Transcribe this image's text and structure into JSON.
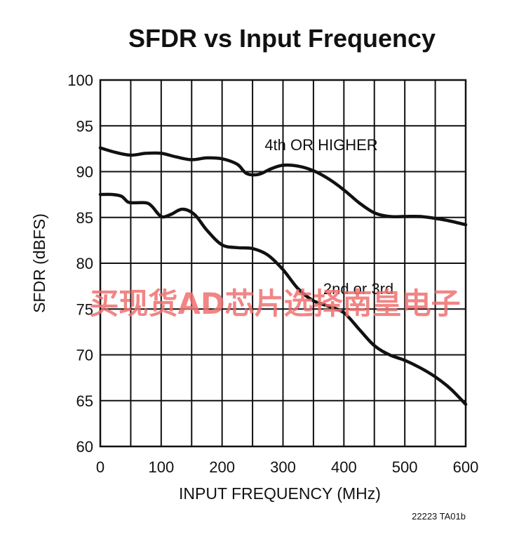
{
  "chart_data": {
    "type": "line",
    "title": "SFDR vs Input Frequency",
    "xlabel": "INPUT FREQUENCY (MHz)",
    "ylabel": "SFDR (dBFS)",
    "xlim": [
      0,
      600
    ],
    "ylim": [
      60,
      100
    ],
    "x_ticks": [
      "0",
      "100",
      "200",
      "300",
      "400",
      "500",
      "600"
    ],
    "y_ticks": [
      "60",
      "65",
      "70",
      "75",
      "80",
      "85",
      "90",
      "95",
      "100"
    ],
    "grid": true,
    "series": [
      {
        "name": "4th OR HIGHER",
        "x": [
          0,
          25,
          50,
          75,
          100,
          125,
          150,
          175,
          200,
          225,
          240,
          260,
          280,
          300,
          325,
          350,
          375,
          400,
          425,
          450,
          475,
          500,
          525,
          550,
          575,
          600
        ],
        "y": [
          92.6,
          92.1,
          91.8,
          92.0,
          92.0,
          91.6,
          91.3,
          91.5,
          91.4,
          90.8,
          89.8,
          89.7,
          90.3,
          90.7,
          90.6,
          90.1,
          89.2,
          88.0,
          86.6,
          85.5,
          85.1,
          85.1,
          85.1,
          84.9,
          84.6,
          84.2
        ]
      },
      {
        "name": "2nd or 3rd",
        "x": [
          0,
          20,
          35,
          45,
          55,
          75,
          85,
          100,
          115,
          135,
          155,
          175,
          200,
          225,
          250,
          275,
          300,
          325,
          350,
          375,
          400,
          425,
          450,
          475,
          500,
          525,
          550,
          575,
          600
        ],
        "y": [
          87.5,
          87.5,
          87.3,
          86.7,
          86.6,
          86.6,
          86.2,
          85.1,
          85.3,
          85.9,
          85.3,
          83.6,
          82.0,
          81.7,
          81.6,
          80.9,
          79.3,
          77.2,
          75.9,
          75.3,
          74.6,
          72.8,
          71.0,
          70.0,
          69.4,
          68.6,
          67.6,
          66.3,
          64.6
        ]
      }
    ],
    "annotations": [
      "4th OR HIGHER",
      "2nd or 3rd"
    ],
    "footnote": "22223 TA01b"
  },
  "watermark_text": "买现货AD芯片选择南皇电子",
  "colors": {
    "line": "#111111",
    "grid": "#111111",
    "watermark": "#f07070"
  }
}
